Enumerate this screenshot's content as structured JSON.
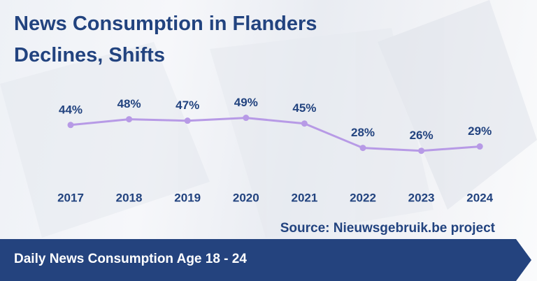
{
  "chart_data": {
    "type": "line",
    "title": "News Consumption in Flanders Declines, Shifts",
    "subtitle": "Daily News Consumption Age 18 - 24",
    "source": "Source: Nieuwsgebruik.be project",
    "categories": [
      "2017",
      "2018",
      "2019",
      "2020",
      "2021",
      "2022",
      "2023",
      "2024"
    ],
    "values": [
      44,
      48,
      47,
      49,
      45,
      28,
      26,
      29
    ],
    "value_labels": [
      "44%",
      "48%",
      "47%",
      "49%",
      "45%",
      "28%",
      "26%",
      "29%"
    ],
    "color": "#b79ae6",
    "ylim": [
      0,
      100
    ]
  }
}
